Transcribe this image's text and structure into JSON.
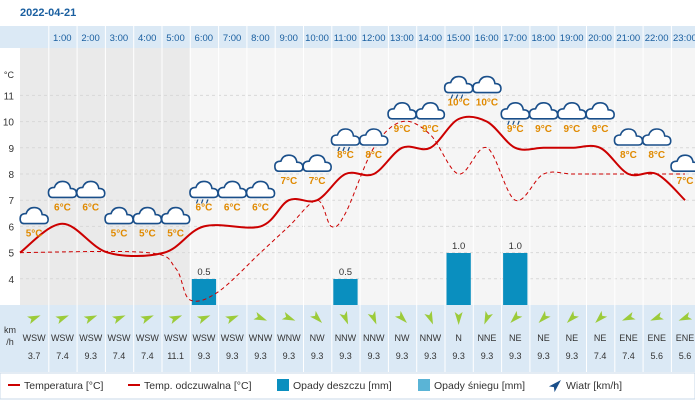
{
  "date": "2022-04-21",
  "colors": {
    "temp": "#cc0000",
    "feels": "#cc0000",
    "rain": "#0a8fbf",
    "snow": "#5ab4d6",
    "temp_label": "#e08a00",
    "header_bg": "#dbe9f5",
    "plot_bg": "#f5f5f5",
    "text": "#333333",
    "header_text": "#1a5fa0",
    "wind_arrow": "#9ccb3a"
  },
  "units": {
    "temp_axis": "°C",
    "wind_axis": "km/h"
  },
  "legend": {
    "temp": "Temperatura [°C]",
    "feels": "Temp. odczuwalna [°C]",
    "rain": "Opady deszczu [mm]",
    "snow": "Opady śniegu [mm]",
    "wind": "Wiatr [km/h]"
  },
  "chart_data": {
    "type": "line",
    "hours": [
      "1:00",
      "2:00",
      "3:00",
      "4:00",
      "5:00",
      "6:00",
      "7:00",
      "8:00",
      "9:00",
      "10:00",
      "11:00",
      "12:00",
      "13:00",
      "14:00",
      "15:00",
      "16:00",
      "17:00",
      "18:00",
      "19:00",
      "20:00",
      "21:00",
      "22:00",
      "23:00"
    ],
    "y_ticks": [
      4,
      5,
      6,
      7,
      8,
      9,
      10,
      11
    ],
    "ylim": [
      3,
      12
    ],
    "temperature_points": [
      {
        "hour": 0.5,
        "value": 5.0
      },
      {
        "hour": 2.0,
        "value": 6.1
      },
      {
        "hour": 3.6,
        "value": 5.0
      },
      {
        "hour": 5.6,
        "value": 5.0
      },
      {
        "hour": 7.0,
        "value": 6.0
      },
      {
        "hour": 9.0,
        "value": 6.0
      },
      {
        "hour": 10.0,
        "value": 7.0
      },
      {
        "hour": 11.0,
        "value": 7.0
      },
      {
        "hour": 12.0,
        "value": 8.0
      },
      {
        "hour": 13.0,
        "value": 8.0
      },
      {
        "hour": 14.0,
        "value": 9.0
      },
      {
        "hour": 15.0,
        "value": 9.0
      },
      {
        "hour": 16.0,
        "value": 10.1
      },
      {
        "hour": 17.0,
        "value": 10.0
      },
      {
        "hour": 18.0,
        "value": 9.0
      },
      {
        "hour": 19.0,
        "value": 9.0
      },
      {
        "hour": 20.0,
        "value": 9.0
      },
      {
        "hour": 21.0,
        "value": 9.0
      },
      {
        "hour": 22.0,
        "value": 8.0
      },
      {
        "hour": 23.0,
        "value": 8.0
      },
      {
        "hour": 24.0,
        "value": 7.0
      }
    ],
    "feels_like_points": [
      {
        "hour": 0.5,
        "value": 5.0
      },
      {
        "hour": 5.0,
        "value": 5.0
      },
      {
        "hour": 6.0,
        "value": 4.4
      },
      {
        "hour": 6.5,
        "value": 3.2
      },
      {
        "hour": 7.5,
        "value": 3.5
      },
      {
        "hour": 9.0,
        "value": 5.0
      },
      {
        "hour": 10.0,
        "value": 6.0
      },
      {
        "hour": 11.0,
        "value": 7.0
      },
      {
        "hour": 11.5,
        "value": 6.0
      },
      {
        "hour": 12.0,
        "value": 6.5
      },
      {
        "hour": 13.0,
        "value": 9.0
      },
      {
        "hour": 14.0,
        "value": 10.0
      },
      {
        "hour": 15.0,
        "value": 9.5
      },
      {
        "hour": 16.0,
        "value": 8.0
      },
      {
        "hour": 17.0,
        "value": 9.0
      },
      {
        "hour": 18.0,
        "value": 7.0
      },
      {
        "hour": 19.0,
        "value": 8.0
      },
      {
        "hour": 20.0,
        "value": 8.0
      },
      {
        "hour": 21.0,
        "value": 8.0
      },
      {
        "hour": 22.0,
        "value": 8.0
      },
      {
        "hour": 24.0,
        "value": 8.0
      }
    ],
    "temp_labels": [
      {
        "hour": 1,
        "text": "5°C",
        "icon": "cloud"
      },
      {
        "hour": 2,
        "text": "6°C",
        "icon": "cloud"
      },
      {
        "hour": 3,
        "text": "6°C",
        "icon": "cloud"
      },
      {
        "hour": 4,
        "text": "5°C",
        "icon": "cloud"
      },
      {
        "hour": 5,
        "text": "5°C",
        "icon": "cloud"
      },
      {
        "hour": 6,
        "text": "5°C",
        "icon": "cloud"
      },
      {
        "hour": 7,
        "text": "6°C",
        "icon": "cloud-rain"
      },
      {
        "hour": 8,
        "text": "6°C",
        "icon": "cloud"
      },
      {
        "hour": 9,
        "text": "6°C",
        "icon": "cloud"
      },
      {
        "hour": 10,
        "text": "7°C",
        "icon": "cloud"
      },
      {
        "hour": 11,
        "text": "7°C",
        "icon": "cloud"
      },
      {
        "hour": 12,
        "text": "8°C",
        "icon": "cloud-rain"
      },
      {
        "hour": 13,
        "text": "8°C",
        "icon": "cloud"
      },
      {
        "hour": 14,
        "text": "9°C",
        "icon": "cloud"
      },
      {
        "hour": 15,
        "text": "9°C",
        "icon": "cloud"
      },
      {
        "hour": 16,
        "text": "10°C",
        "icon": "cloud-rain"
      },
      {
        "hour": 17,
        "text": "10°C",
        "icon": "cloud"
      },
      {
        "hour": 18,
        "text": "9°C",
        "icon": "cloud-rain"
      },
      {
        "hour": 19,
        "text": "9°C",
        "icon": "cloud"
      },
      {
        "hour": 20,
        "text": "9°C",
        "icon": "cloud"
      },
      {
        "hour": 21,
        "text": "9°C",
        "icon": "cloud"
      },
      {
        "hour": 22,
        "text": "8°C",
        "icon": "cloud"
      },
      {
        "hour": 23,
        "text": "8°C",
        "icon": "cloud"
      },
      {
        "hour": 24,
        "text": "7°C",
        "icon": "cloud"
      }
    ],
    "rain": [
      {
        "hour": 7,
        "value": 0.5,
        "label": "0.5"
      },
      {
        "hour": 12,
        "value": 0.5,
        "label": "0.5"
      },
      {
        "hour": 16,
        "value": 1.0,
        "label": "1.0"
      },
      {
        "hour": 18,
        "value": 1.0,
        "label": "1.0"
      }
    ],
    "wind": [
      {
        "dir": "WSW",
        "speed": "3.7"
      },
      {
        "dir": "WSW",
        "speed": "7.4"
      },
      {
        "dir": "WSW",
        "speed": "9.3"
      },
      {
        "dir": "WSW",
        "speed": "7.4"
      },
      {
        "dir": "WSW",
        "speed": "7.4"
      },
      {
        "dir": "WSW",
        "speed": "11.1"
      },
      {
        "dir": "WSW",
        "speed": "9.3"
      },
      {
        "dir": "WSW",
        "speed": "9.3"
      },
      {
        "dir": "WNW",
        "speed": "9.3"
      },
      {
        "dir": "WNW",
        "speed": "9.3"
      },
      {
        "dir": "NW",
        "speed": "9.3"
      },
      {
        "dir": "NNW",
        "speed": "9.3"
      },
      {
        "dir": "NNW",
        "speed": "9.3"
      },
      {
        "dir": "NW",
        "speed": "9.3"
      },
      {
        "dir": "NNW",
        "speed": "9.3"
      },
      {
        "dir": "N",
        "speed": "9.3"
      },
      {
        "dir": "NNE",
        "speed": "9.3"
      },
      {
        "dir": "NE",
        "speed": "9.3"
      },
      {
        "dir": "NE",
        "speed": "9.3"
      },
      {
        "dir": "NE",
        "speed": "9.3"
      },
      {
        "dir": "NE",
        "speed": "7.4"
      },
      {
        "dir": "ENE",
        "speed": "7.4"
      },
      {
        "dir": "ENE",
        "speed": "5.6"
      },
      {
        "dir": "ENE",
        "speed": "5.6"
      }
    ]
  }
}
